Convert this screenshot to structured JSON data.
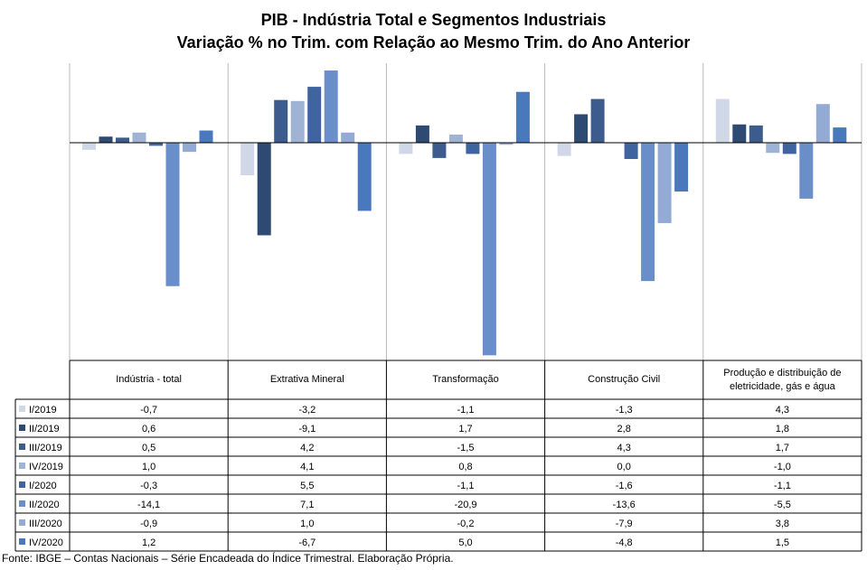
{
  "chart_data": {
    "type": "bar",
    "title": "PIB - Indústria Total e Segmentos Industriais",
    "subtitle": "Variação % no Trim. com Relação ao Mesmo Trim. do Ano Anterior",
    "categories": [
      "Indústria - total",
      "Extrativa Mineral",
      "Transformação",
      "Construção Civil",
      "Produção e distribuição de eletricidade, gás e água"
    ],
    "series": [
      {
        "name": "I/2019",
        "color": "#d0d8e8",
        "values": [
          -0.7,
          -3.2,
          -1.1,
          -1.3,
          4.3
        ],
        "display": [
          "-0,7",
          "-3,2",
          "-1,1",
          "-1,3",
          "4,3"
        ]
      },
      {
        "name": "II/2019",
        "color": "#2e4a73",
        "values": [
          0.6,
          -9.1,
          1.7,
          2.8,
          1.8
        ],
        "display": [
          "0,6",
          "-9,1",
          "1,7",
          "2,8",
          "1,8"
        ]
      },
      {
        "name": "III/2019",
        "color": "#3b5c8c",
        "values": [
          0.5,
          4.2,
          -1.5,
          4.3,
          1.7
        ],
        "display": [
          "0,5",
          "4,2",
          "-1,5",
          "4,3",
          "1,7"
        ]
      },
      {
        "name": "IV/2019",
        "color": "#9fb3d4",
        "values": [
          1.0,
          4.1,
          0.8,
          0.0,
          -1.0
        ],
        "display": [
          "1,0",
          "4,1",
          "0,8",
          "0,0",
          "-1,0"
        ]
      },
      {
        "name": "I/2020",
        "color": "#3f64a0",
        "values": [
          -0.3,
          5.5,
          -1.1,
          -1.6,
          -1.1
        ],
        "display": [
          "-0,3",
          "5,5",
          "-1,1",
          "-1,6",
          "-1,1"
        ]
      },
      {
        "name": "II/2020",
        "color": "#6a8ec9",
        "values": [
          -14.1,
          7.1,
          -20.9,
          -13.6,
          -5.5
        ],
        "display": [
          "-14,1",
          "7,1",
          "-20,9",
          "-13,6",
          "-5,5"
        ]
      },
      {
        "name": "III/2020",
        "color": "#93aad4",
        "values": [
          -0.9,
          1.0,
          -0.2,
          -7.9,
          3.8
        ],
        "display": [
          "-0,9",
          "1,0",
          "-0,2",
          "-7,9",
          "3,8"
        ]
      },
      {
        "name": "IV/2020",
        "color": "#4a78bd",
        "values": [
          1.2,
          -6.7,
          5.0,
          -4.8,
          1.5
        ],
        "display": [
          "1,2",
          "-6,7",
          "5,0",
          "-4,8",
          "1,5"
        ]
      }
    ],
    "ylim": [
      -21.5,
      7.3
    ],
    "grid": false,
    "legend": "data table below chart"
  },
  "footer": {
    "source": "Fonte: IBGE – Contas Nacionais – Série Encadeada do Índice Trimestral. Elaboração Própria."
  }
}
